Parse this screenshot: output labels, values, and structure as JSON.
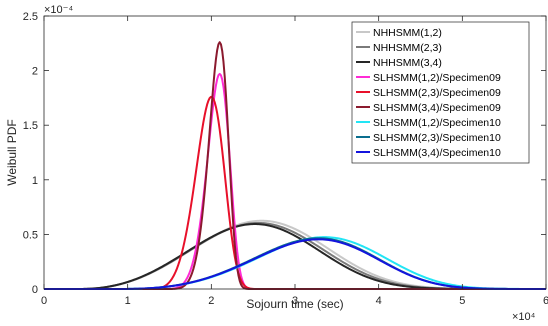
{
  "chart_data": {
    "type": "line",
    "title": "",
    "xlabel": "Sojourn time (sec)",
    "ylabel": "Weibull PDF",
    "x_multiplier": "×10⁴",
    "y_multiplier": "×10⁻⁴",
    "xlim": [
      0,
      60000
    ],
    "ylim": [
      0,
      0.00025
    ],
    "x_ticks": [
      0,
      10000,
      20000,
      30000,
      40000,
      50000,
      60000
    ],
    "x_tick_labels": [
      "0",
      "1",
      "2",
      "3",
      "4",
      "5",
      "6"
    ],
    "y_ticks": [
      0,
      5e-05,
      0.0001,
      0.00015,
      0.0002,
      0.00025
    ],
    "y_tick_labels": [
      "0",
      "0.5",
      "1",
      "1.5",
      "2",
      "2.5"
    ],
    "grid": false,
    "legend_position": "top-right",
    "series": [
      {
        "name": "NHHSMM(1,2)",
        "color": "#c8c8c8",
        "peak_x": 26000,
        "peak_y": 6.25e-05,
        "shape": 3.3,
        "onset": 4000
      },
      {
        "name": "NHHSMM(2,3)",
        "color": "#7a7a7a",
        "peak_x": 25600,
        "peak_y": 6.05e-05,
        "shape": 3.3,
        "onset": 4000
      },
      {
        "name": "NHHSMM(3,4)",
        "color": "#262626",
        "peak_x": 25200,
        "peak_y": 5.95e-05,
        "shape": 3.3,
        "onset": 4000
      },
      {
        "name": "SLHSMM(1,2)/Specimen09",
        "color": "#ff2bd6",
        "peak_x": 21000,
        "peak_y": 0.000197,
        "shape": 6.2,
        "onset": 13500
      },
      {
        "name": "SLHSMM(2,3)/Specimen09",
        "color": "#e8102a",
        "peak_x": 20000,
        "peak_y": 0.000176,
        "shape": 5.2,
        "onset": 12000
      },
      {
        "name": "SLHSMM(3,4)/Specimen09",
        "color": "#8b1a2e",
        "peak_x": 21000,
        "peak_y": 0.000226,
        "shape": 6.6,
        "onset": 14000
      },
      {
        "name": "SLHSMM(1,2)/Specimen10",
        "color": "#22e5f5",
        "peak_x": 33500,
        "peak_y": 4.75e-05,
        "shape": 3.9,
        "onset": 8000
      },
      {
        "name": "SLHSMM(2,3)/Specimen10",
        "color": "#0a6e8e",
        "peak_x": 32800,
        "peak_y": 4.65e-05,
        "shape": 3.9,
        "onset": 8000
      },
      {
        "name": "SLHSMM(3,4)/Specimen10",
        "color": "#1414dd",
        "peak_x": 32800,
        "peak_y": 4.55e-05,
        "shape": 3.9,
        "onset": 8000
      }
    ]
  }
}
